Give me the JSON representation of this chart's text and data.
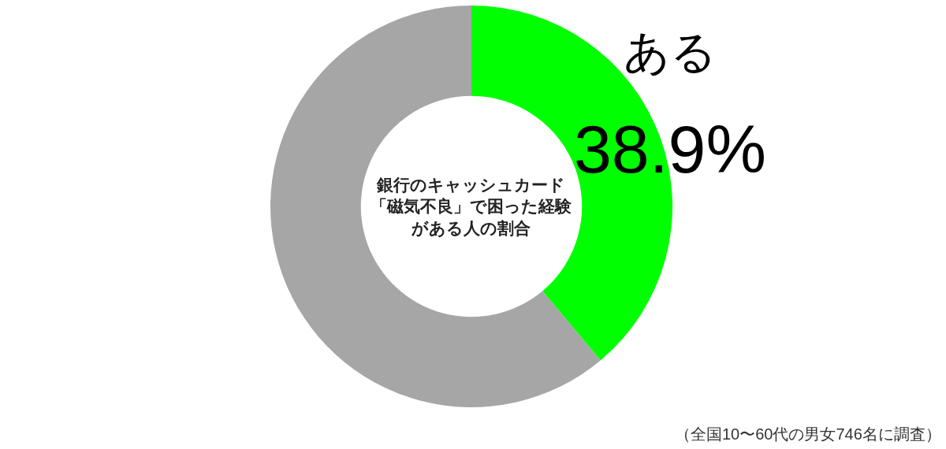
{
  "chart_data": {
    "type": "donut",
    "title": "銀行のキャッシュカード「磁気不良」で困った経験がある人の割合",
    "categories": [
      "ある",
      null
    ],
    "values": [
      38.9,
      61.1
    ],
    "colors": [
      "#00ff00",
      "#a6a6a6"
    ],
    "value_labels": [
      "38.9%",
      null
    ],
    "annotations": [
      "（全国10〜60代の男女746名に調査）"
    ]
  }
}
